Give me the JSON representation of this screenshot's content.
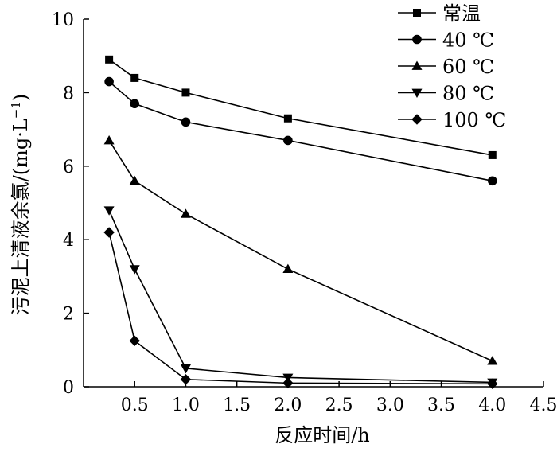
{
  "chart_data": {
    "type": "line",
    "title": "",
    "xlabel": "反应时间/h",
    "ylabel_main": "污泥上清液余氯/(mg·L",
    "ylabel_sup": "−1",
    "ylabel_close": ")",
    "xlim": [
      0,
      4.5
    ],
    "ylim": [
      0,
      10
    ],
    "x_ticks": [
      0.5,
      1.0,
      1.5,
      2.0,
      2.5,
      3.0,
      3.5,
      4.0,
      4.5
    ],
    "x_tick_labels": [
      "0.5",
      "1.0",
      "1.5",
      "2.0",
      "2.5",
      "3.0",
      "3.5",
      "4.0",
      "4.5"
    ],
    "y_ticks": [
      0,
      2,
      4,
      6,
      8,
      10
    ],
    "y_tick_labels": [
      "0",
      "2",
      "4",
      "6",
      "8",
      "10"
    ],
    "x": [
      0.25,
      0.5,
      1.0,
      2.0,
      4.0
    ],
    "legend_position": "top-right",
    "grid": false,
    "color": "#000000",
    "series": [
      {
        "name": "常温",
        "marker": "square",
        "values": [
          8.9,
          8.4,
          8.0,
          7.3,
          6.3
        ]
      },
      {
        "name": "40 ℃",
        "marker": "circle",
        "values": [
          8.3,
          7.7,
          7.2,
          6.7,
          5.6
        ]
      },
      {
        "name": "60 ℃",
        "marker": "triangle-up",
        "values": [
          6.7,
          5.6,
          4.7,
          3.2,
          0.7
        ]
      },
      {
        "name": "80 ℃",
        "marker": "triangle-down",
        "values": [
          4.8,
          3.2,
          0.5,
          0.25,
          0.12
        ]
      },
      {
        "name": "100 ℃",
        "marker": "diamond",
        "values": [
          4.2,
          1.25,
          0.2,
          0.1,
          0.08
        ]
      }
    ]
  }
}
